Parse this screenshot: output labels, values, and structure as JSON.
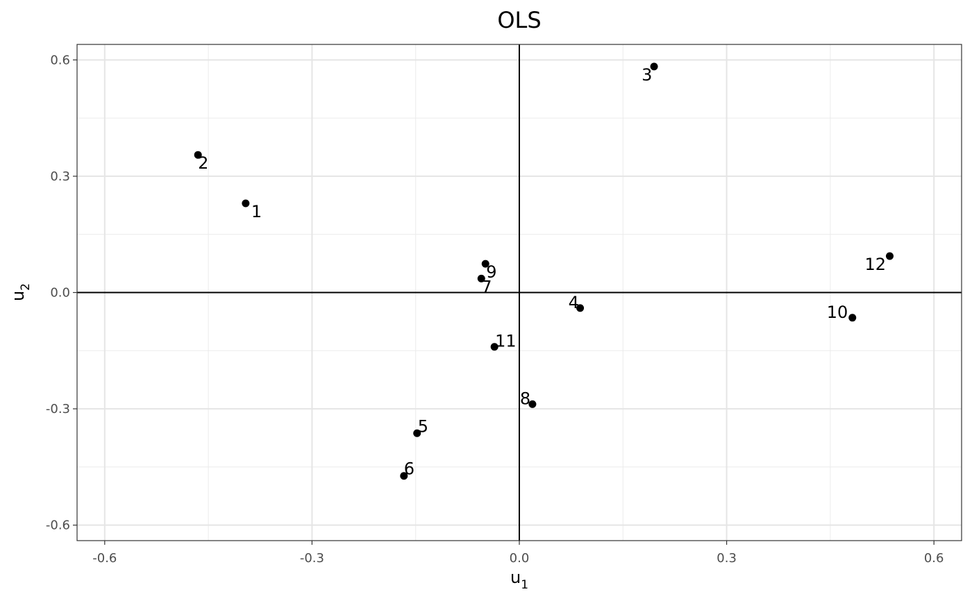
{
  "chart_data": {
    "type": "scatter",
    "title": "OLS",
    "xlabel": {
      "base": "u",
      "sub": "1"
    },
    "ylabel": {
      "base": "u",
      "sub": "2"
    },
    "xlim": [
      -0.64,
      0.64
    ],
    "ylim": [
      -0.64,
      0.64
    ],
    "x_ticks": [
      -0.6,
      -0.3,
      0.0,
      0.3,
      0.6
    ],
    "y_ticks": [
      -0.6,
      -0.3,
      0.0,
      0.3,
      0.6
    ],
    "x_tick_labels": [
      "-0.6",
      "-0.3",
      "0.0",
      "0.3",
      "0.6"
    ],
    "y_tick_labels": [
      "-0.6",
      "-0.3",
      "0.0",
      "0.3",
      "0.6"
    ],
    "x_minor": [
      -0.45,
      -0.15,
      0.15,
      0.45
    ],
    "y_minor": [
      -0.45,
      -0.15,
      0.15,
      0.45
    ],
    "grid": true,
    "reference_lines": {
      "x": 0,
      "y": 0
    },
    "points": [
      {
        "label": "1",
        "x": -0.396,
        "y": 0.23
      },
      {
        "label": "2",
        "x": -0.465,
        "y": 0.355
      },
      {
        "label": "3",
        "x": 0.195,
        "y": 0.583
      },
      {
        "label": "4",
        "x": 0.088,
        "y": -0.04
      },
      {
        "label": "5",
        "x": -0.148,
        "y": -0.363
      },
      {
        "label": "6",
        "x": -0.167,
        "y": -0.473
      },
      {
        "label": "7",
        "x": -0.055,
        "y": 0.036
      },
      {
        "label": "8",
        "x": 0.019,
        "y": -0.288
      },
      {
        "label": "9",
        "x": -0.049,
        "y": 0.074
      },
      {
        "label": "10",
        "x": 0.482,
        "y": -0.065
      },
      {
        "label": "11",
        "x": -0.036,
        "y": -0.14
      },
      {
        "label": "12",
        "x": 0.536,
        "y": 0.094
      }
    ]
  }
}
